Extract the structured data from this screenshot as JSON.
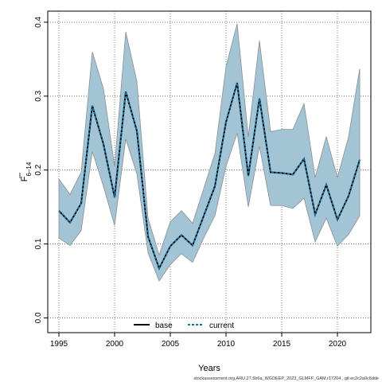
{
  "chart_data": {
    "type": "area",
    "xlabel": "Years",
    "ylabel": {
      "main": "F",
      "sub": "6–14"
    },
    "xlim": [
      1994,
      2023
    ],
    "ylim": [
      -0.02,
      0.415
    ],
    "x_ticks": [
      1995,
      2000,
      2005,
      2010,
      2015,
      2020
    ],
    "y_ticks": [
      0.0,
      0.1,
      0.2,
      0.3,
      0.4
    ],
    "y_tick_labels": [
      "0.0",
      "0.1",
      "0.2",
      "0.3",
      "0.4"
    ],
    "grid": true,
    "legend_position": "bottom-center",
    "x": [
      1995,
      1996,
      1997,
      1998,
      1999,
      2000,
      2001,
      2002,
      2003,
      2004,
      2005,
      2006,
      2007,
      2008,
      2009,
      2010,
      2011,
      2012,
      2013,
      2014,
      2015,
      2016,
      2017,
      2018,
      2019,
      2020,
      2021,
      2022
    ],
    "ribbon": {
      "upper": [
        0.188,
        0.167,
        0.197,
        0.36,
        0.31,
        0.205,
        0.387,
        0.32,
        0.135,
        0.085,
        0.13,
        0.145,
        0.128,
        0.175,
        0.222,
        0.34,
        0.398,
        0.245,
        0.375,
        0.252,
        0.255,
        0.255,
        0.29,
        0.19,
        0.245,
        0.19,
        0.245,
        0.337
      ],
      "lower": [
        0.108,
        0.098,
        0.118,
        0.225,
        0.178,
        0.125,
        0.242,
        0.195,
        0.088,
        0.05,
        0.072,
        0.087,
        0.075,
        0.108,
        0.138,
        0.205,
        0.25,
        0.15,
        0.232,
        0.152,
        0.152,
        0.148,
        0.162,
        0.103,
        0.135,
        0.097,
        0.113,
        0.138
      ],
      "color": "#a3c4d5",
      "edge_color": "#8a8f93"
    },
    "series": [
      {
        "name": "base",
        "style": "solid",
        "color": "#000000",
        "values": [
          0.145,
          0.129,
          0.155,
          0.287,
          0.235,
          0.163,
          0.306,
          0.253,
          0.11,
          0.067,
          0.097,
          0.112,
          0.098,
          0.138,
          0.178,
          0.265,
          0.318,
          0.192,
          0.297,
          0.197,
          0.196,
          0.194,
          0.215,
          0.14,
          0.18,
          0.133,
          0.165,
          0.214
        ]
      },
      {
        "name": "current",
        "style": "dashed",
        "color": "#1a6f9c",
        "values": [
          0.145,
          0.129,
          0.155,
          0.287,
          0.235,
          0.163,
          0.306,
          0.253,
          0.11,
          0.067,
          0.097,
          0.112,
          0.098,
          0.138,
          0.178,
          0.265,
          0.318,
          0.192,
          0.297,
          0.197,
          0.196,
          0.194,
          0.215,
          0.14,
          0.18,
          0.133,
          0.165,
          0.214
        ]
      }
    ],
    "footer": "stockassessment.org,ARU.27.5b6a_WGDEEP_2023_GLMFF_GAM,r17204 , git:ec2c2a0c6dde"
  }
}
